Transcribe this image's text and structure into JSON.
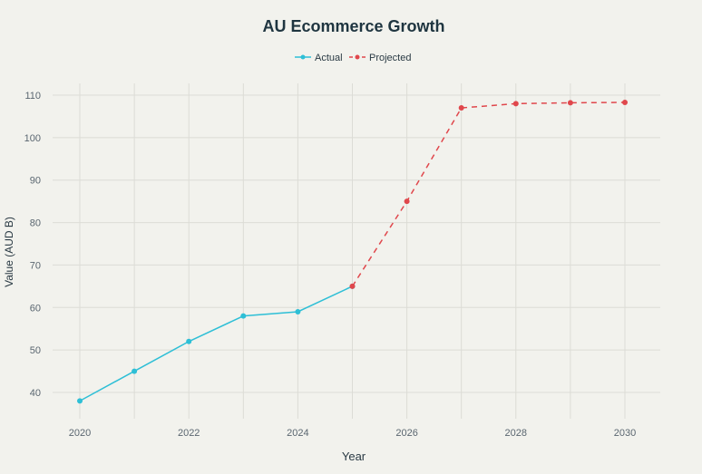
{
  "chart_data": {
    "type": "line",
    "title": "AU Ecommerce Growth",
    "xlabel": "Year",
    "ylabel": "Value (AUD B)",
    "xlim": [
      2019.5,
      2030.6
    ],
    "ylim": [
      37,
      112.5
    ],
    "xticks": [
      2020,
      2022,
      2024,
      2026,
      2028,
      2030
    ],
    "yticks": [
      40,
      50,
      60,
      70,
      80,
      90,
      100,
      110
    ],
    "grid": true,
    "legend_position": "top-center",
    "series": [
      {
        "name": "Actual",
        "color": "#2ebfd6",
        "dash": false,
        "x": [
          2020,
          2021,
          2022,
          2023,
          2024,
          2025
        ],
        "y": [
          38,
          45,
          52,
          58,
          59,
          65
        ]
      },
      {
        "name": "Projected",
        "color": "#e0474c",
        "dash": true,
        "x": [
          2025,
          2026,
          2027,
          2028,
          2029,
          2030
        ],
        "y": [
          65,
          85,
          107,
          108,
          108.2,
          108.3
        ]
      }
    ]
  }
}
